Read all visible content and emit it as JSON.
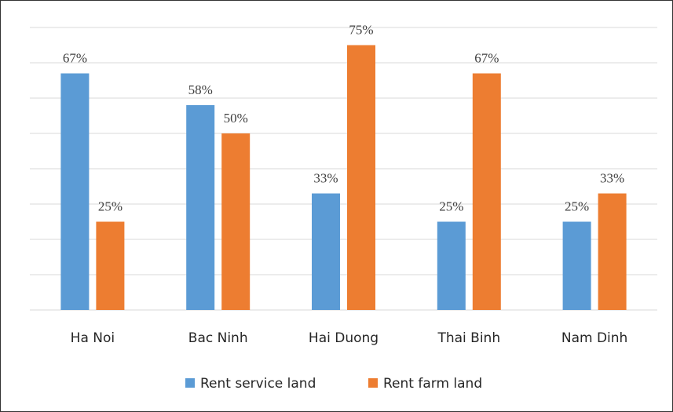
{
  "chart_data": {
    "type": "bar",
    "categories": [
      "Ha Noi",
      "Bac Ninh",
      "Hai Duong",
      "Thai Binh",
      "Nam Dinh"
    ],
    "series": [
      {
        "name": "Rent service land",
        "color": "#5b9bd5",
        "values": [
          67,
          58,
          33,
          25,
          25
        ],
        "value_labels": [
          "67%",
          "58%",
          "33%",
          "25%",
          "25%"
        ]
      },
      {
        "name": "Rent farm land",
        "color": "#ed7d31",
        "values": [
          25,
          50,
          75,
          67,
          33
        ],
        "value_labels": [
          "25%",
          "50%",
          "75%",
          "67%",
          "33%"
        ]
      }
    ],
    "ylim": [
      0,
      80
    ],
    "yticks": [
      0,
      10,
      20,
      30,
      40,
      50,
      60,
      70,
      80
    ],
    "grid": true,
    "legend": "bottom"
  }
}
